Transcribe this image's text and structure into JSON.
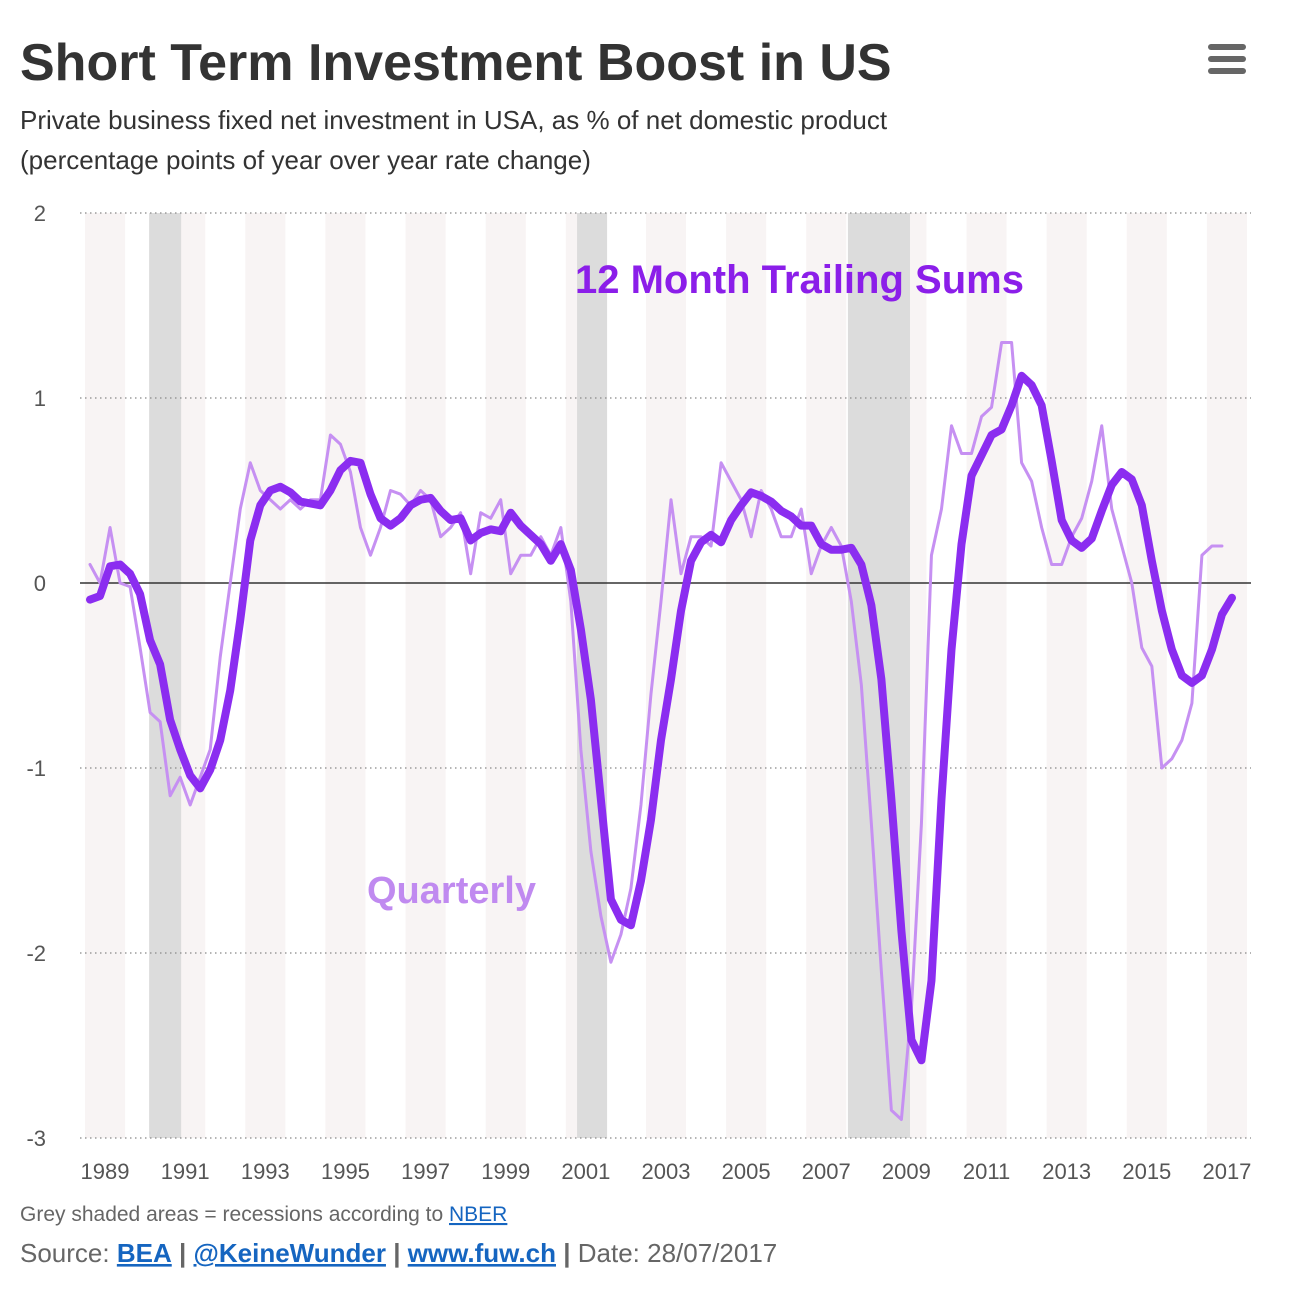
{
  "chart_data": {
    "type": "line",
    "title": "Short Term Investment Boost in US",
    "subtitle": [
      "Private business fixed net investment in USA, as % of net domestic product",
      "(percentage points of year over year rate change)"
    ],
    "annotations": [
      "12 Month Trailing Sums",
      "Quarterly"
    ],
    "x": [
      1988.625,
      1988.875,
      1989.125,
      1989.375,
      1989.625,
      1989.875,
      1990.125,
      1990.375,
      1990.625,
      1990.875,
      1991.125,
      1991.375,
      1991.625,
      1991.875,
      1992.125,
      1992.375,
      1992.625,
      1992.875,
      1993.125,
      1993.375,
      1993.625,
      1993.875,
      1994.125,
      1994.375,
      1994.625,
      1994.875,
      1995.125,
      1995.375,
      1995.625,
      1995.875,
      1996.125,
      1996.375,
      1996.625,
      1996.875,
      1997.125,
      1997.375,
      1997.625,
      1997.875,
      1998.125,
      1998.375,
      1998.625,
      1998.875,
      1999.125,
      1999.375,
      1999.625,
      1999.875,
      2000.125,
      2000.375,
      2000.625,
      2000.875,
      2001.125,
      2001.375,
      2001.625,
      2001.875,
      2002.125,
      2002.375,
      2002.625,
      2002.875,
      2003.125,
      2003.375,
      2003.625,
      2003.875,
      2004.125,
      2004.375,
      2004.625,
      2004.875,
      2005.125,
      2005.375,
      2005.625,
      2005.875,
      2006.125,
      2006.375,
      2006.625,
      2006.875,
      2007.125,
      2007.375,
      2007.625,
      2007.875,
      2008.125,
      2008.375,
      2008.625,
      2008.875,
      2009.125,
      2009.375,
      2009.625,
      2009.875,
      2010.125,
      2010.375,
      2010.625,
      2010.875,
      2011.125,
      2011.375,
      2011.625,
      2011.875,
      2012.125,
      2012.375,
      2012.625,
      2012.875,
      2013.125,
      2013.375,
      2013.625,
      2013.875,
      2014.125,
      2014.375,
      2014.625,
      2014.875,
      2015.125,
      2015.375,
      2015.625,
      2015.875,
      2016.125,
      2016.375,
      2016.625,
      2016.875,
      2017.125
    ],
    "series": [
      {
        "name": "Quarterly",
        "color": "#c690f2",
        "width": 3,
        "values": [
          0.1,
          0.0,
          0.3,
          0.0,
          -0.02,
          -0.35,
          -0.7,
          -0.75,
          -1.15,
          -1.05,
          -1.2,
          -1.05,
          -0.9,
          -0.4,
          0.0,
          0.4,
          0.65,
          0.5,
          0.45,
          0.4,
          0.45,
          0.4,
          0.45,
          0.45,
          0.8,
          0.75,
          0.6,
          0.3,
          0.15,
          0.3,
          0.5,
          0.48,
          0.42,
          0.5,
          0.45,
          0.25,
          0.3,
          0.38,
          0.05,
          0.38,
          0.35,
          0.45,
          0.05,
          0.15,
          0.15,
          0.25,
          0.15,
          0.3,
          -0.1,
          -0.9,
          -1.45,
          -1.8,
          -2.05,
          -1.9,
          -1.65,
          -1.2,
          -0.6,
          -0.1,
          0.45,
          0.05,
          0.25,
          0.25,
          0.2,
          0.65,
          0.55,
          0.45,
          0.25,
          0.5,
          0.4,
          0.25,
          0.25,
          0.4,
          0.05,
          0.2,
          0.3,
          0.2,
          -0.1,
          -0.55,
          -1.3,
          -2.1,
          -2.85,
          -2.9,
          -2.3,
          -1.3,
          0.15,
          0.4,
          0.85,
          0.7,
          0.7,
          0.9,
          0.95,
          1.3,
          1.3,
          0.65,
          0.55,
          0.3,
          0.1,
          0.1,
          0.25,
          0.35,
          0.55,
          0.85,
          0.4,
          0.2,
          0.0,
          -0.35,
          -0.45,
          -1.0,
          -0.95,
          -0.85,
          -0.65,
          0.15,
          0.2,
          0.2,
          null
        ]
      },
      {
        "name": "12 Month Trailing Sums",
        "color": "#8b2df0",
        "width": 8,
        "values": [
          -0.09,
          -0.07,
          0.09,
          0.1,
          0.05,
          -0.06,
          -0.31,
          -0.44,
          -0.74,
          -0.9,
          -1.04,
          -1.11,
          -1.01,
          -0.85,
          -0.58,
          -0.2,
          0.23,
          0.42,
          0.5,
          0.52,
          0.49,
          0.44,
          0.43,
          0.42,
          0.5,
          0.61,
          0.66,
          0.65,
          0.48,
          0.35,
          0.31,
          0.35,
          0.42,
          0.45,
          0.46,
          0.39,
          0.34,
          0.35,
          0.23,
          0.27,
          0.29,
          0.28,
          0.38,
          0.31,
          0.26,
          0.21,
          0.12,
          0.21,
          0.07,
          -0.25,
          -0.63,
          -1.17,
          -1.71,
          -1.82,
          -1.85,
          -1.61,
          -1.28,
          -0.85,
          -0.52,
          -0.15,
          0.12,
          0.22,
          0.26,
          0.22,
          0.34,
          0.42,
          0.49,
          0.47,
          0.44,
          0.39,
          0.36,
          0.31,
          0.31,
          0.21,
          0.18,
          0.18,
          0.19,
          0.1,
          -0.12,
          -0.52,
          -1.17,
          -1.88,
          -2.47,
          -2.58,
          -2.15,
          -1.17,
          -0.36,
          0.21,
          0.58,
          0.69,
          0.8,
          0.83,
          0.96,
          1.12,
          1.07,
          0.96,
          0.66,
          0.34,
          0.23,
          0.19,
          0.24,
          0.39,
          0.53,
          0.6,
          0.56,
          0.42,
          0.12,
          -0.15,
          -0.36,
          -0.5,
          -0.54,
          -0.5,
          -0.36,
          -0.17,
          -0.08
        ]
      }
    ],
    "recessions": [
      [
        1990.1,
        1990.9
      ],
      [
        2000.78,
        2001.53
      ],
      [
        2007.54,
        2009.09
      ]
    ],
    "recession_color": "#dcdcdc",
    "band_color": "#f8f4f4",
    "xlim": [
      1988.5,
      2017.6
    ],
    "xticks": [
      1989,
      1991,
      1993,
      1995,
      1997,
      1999,
      2001,
      2003,
      2005,
      2007,
      2009,
      2011,
      2013,
      2015,
      2017
    ],
    "ylim": [
      -3,
      2
    ],
    "yticks": [
      -3,
      -2,
      -1,
      0,
      1,
      2
    ],
    "grid": true,
    "footnote": {
      "text": "Grey shaded areas = recessions according to",
      "link": "NBER"
    },
    "source": {
      "label": "Source:",
      "links": [
        "BEA",
        "@KeineWunder",
        "www.fuw.ch"
      ],
      "separator": "|",
      "date": "Date: 28/07/2017"
    }
  }
}
